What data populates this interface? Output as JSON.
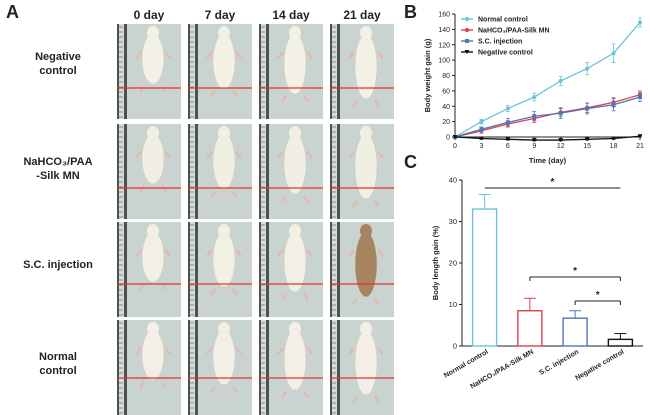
{
  "figure": {
    "panel_a_letter": "A",
    "panel_b_letter": "B",
    "panel_c_letter": "C",
    "column_headers": [
      "0 day",
      "7 day",
      "14 day",
      "21 day"
    ],
    "row_labels": [
      [
        "Negative",
        "control"
      ],
      [
        "NaHCO₃/PAA",
        "-Silk MN"
      ],
      [
        "S.C. injection"
      ],
      [
        "Normal",
        "control"
      ]
    ],
    "reference_line_color": "#e8322e"
  },
  "chart_data": [
    {
      "type": "line",
      "panel": "B",
      "xlabel": "Time (day)",
      "ylabel": "Body weight gain (g)",
      "x": [
        0,
        3,
        6,
        9,
        12,
        15,
        18,
        21
      ],
      "xticks": [
        "0",
        "3",
        "6",
        "9",
        "12",
        "15",
        "18",
        "21"
      ],
      "yticks": [
        "0",
        "20",
        "40",
        "60",
        "80",
        "100",
        "120",
        "140",
        "160"
      ],
      "ylim": [
        0,
        160
      ],
      "xlim": [
        0,
        21
      ],
      "legend_position": "top-left",
      "series": [
        {
          "name": "Normal control",
          "color": "#6fc3d6",
          "marker": "circle",
          "values": [
            0,
            20,
            37,
            52,
            73,
            89,
            109,
            149
          ],
          "errors": [
            2,
            3,
            4,
            5,
            6,
            8,
            12,
            6
          ]
        },
        {
          "name": "NaHCO₃/PAA-Silk MN",
          "color": "#e0404a",
          "marker": "circle",
          "values": [
            0,
            8,
            17,
            24,
            32,
            38,
            45,
            55
          ],
          "errors": [
            1,
            3,
            4,
            5,
            5,
            6,
            6,
            5
          ]
        },
        {
          "name": "S.C. injection",
          "color": "#4b78b8",
          "marker": "square",
          "values": [
            0,
            10,
            19,
            27,
            31,
            37,
            42,
            52
          ],
          "errors": [
            1,
            3,
            5,
            6,
            7,
            7,
            8,
            6
          ]
        },
        {
          "name": "Negative control",
          "color": "#111111",
          "marker": "triangle-down",
          "values": [
            0,
            -2,
            -3,
            -4,
            -4,
            -3,
            -2,
            1
          ],
          "errors": [
            0.5,
            1,
            1,
            1,
            1,
            1,
            1,
            1
          ]
        }
      ]
    },
    {
      "type": "bar",
      "panel": "C",
      "ylabel": "Body length gain (%)",
      "categories": [
        "Normal control",
        "NaHCO₃/PAA-Silk MN",
        "S.C. injection",
        "Negative control"
      ],
      "values": [
        33,
        8.5,
        6.7,
        1.6
      ],
      "errors": [
        3.5,
        3.0,
        1.8,
        1.4
      ],
      "colors": [
        "#6fc3d6",
        "#e0404a",
        "#4b78b8",
        "#111111"
      ],
      "ylim": [
        0,
        40
      ],
      "yticks": [
        "0",
        "10",
        "20",
        "30",
        "40"
      ],
      "significance": [
        {
          "from": 0,
          "to": 3,
          "label": "*"
        },
        {
          "from": 1,
          "to": 3,
          "label": "*"
        },
        {
          "from": 2,
          "to": 3,
          "label": "*"
        }
      ]
    }
  ]
}
